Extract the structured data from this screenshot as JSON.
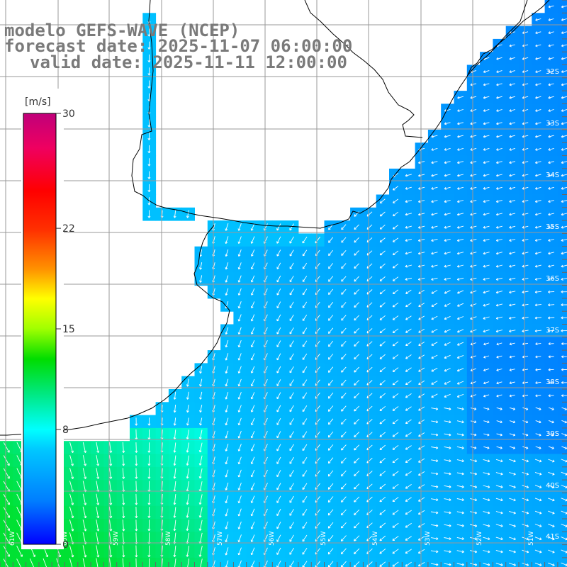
{
  "titles": {
    "line1": "modelo GEFS-WAVE (NCEP)",
    "line2": "forecast date: 2025-11-07 06:00:00",
    "line3": "valid date: 2025-11-11 12:00:00"
  },
  "colorbar": {
    "unit": "[m/s]",
    "ticks": [
      "30",
      "22",
      "15",
      "8",
      "0"
    ],
    "tick_values": [
      30,
      22,
      15,
      8,
      0
    ],
    "range": [
      0,
      30
    ]
  },
  "map": {
    "lat_labels": [
      "32S",
      "33S",
      "34S",
      "35S",
      "36S",
      "37S",
      "38S",
      "39S",
      "40S",
      "41S"
    ],
    "lon_labels": [
      "61W",
      "60W",
      "59W",
      "58W",
      "57W",
      "56W",
      "55W",
      "54W",
      "53W",
      "52W",
      "51W"
    ],
    "colors": {
      "land": "#ffffff",
      "grid": "#999999",
      "coastline": "#000000",
      "arrows": "#ffffff"
    },
    "wind_field": "wind speed shaded with direction arrows, predominantly from the north-east/north over La Plata estuary and southern Brazil-Uruguay shelf"
  }
}
